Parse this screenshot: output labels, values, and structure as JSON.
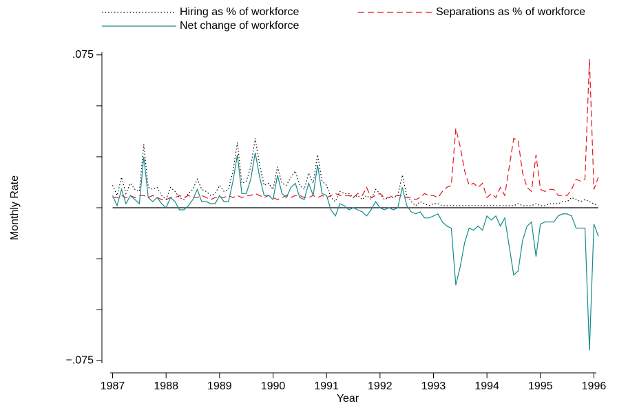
{
  "chart_data": {
    "type": "line",
    "x_label": "Year",
    "y_label": "Monthly Rate",
    "xlim": [
      1986.8,
      1996.2
    ],
    "xticks": [
      1987,
      1988,
      1989,
      1990,
      1991,
      1992,
      1993,
      1994,
      1995,
      1996
    ],
    "ylim": [
      -0.081,
      0.081
    ],
    "yticks": [
      {
        "value": -0.075,
        "label": "−.075"
      },
      {
        "value": 0.075,
        "label": ".075"
      }
    ],
    "yminorticks": [
      -0.05,
      -0.025,
      0,
      0.025,
      0.05
    ],
    "reference_line": 0,
    "x": [
      1987,
      1987.083,
      1987.167,
      1987.25,
      1987.333,
      1987.417,
      1987.5,
      1987.583,
      1987.667,
      1987.75,
      1987.833,
      1987.917,
      1988,
      1988.083,
      1988.167,
      1988.25,
      1988.333,
      1988.417,
      1988.5,
      1988.583,
      1988.667,
      1988.75,
      1988.833,
      1988.917,
      1989,
      1989.083,
      1989.167,
      1989.25,
      1989.333,
      1989.417,
      1989.5,
      1989.583,
      1989.667,
      1989.75,
      1989.833,
      1989.917,
      1990,
      1990.083,
      1990.167,
      1990.25,
      1990.333,
      1990.417,
      1990.5,
      1990.583,
      1990.667,
      1990.75,
      1990.833,
      1990.917,
      1991,
      1991.083,
      1991.167,
      1991.25,
      1991.333,
      1991.417,
      1991.5,
      1991.583,
      1991.667,
      1991.75,
      1991.833,
      1991.917,
      1992,
      1992.083,
      1992.167,
      1992.25,
      1992.333,
      1992.417,
      1992.5,
      1992.583,
      1992.667,
      1992.75,
      1992.833,
      1992.917,
      1993,
      1993.083,
      1993.167,
      1993.25,
      1993.333,
      1993.417,
      1993.5,
      1993.583,
      1993.667,
      1993.75,
      1993.833,
      1993.917,
      1994,
      1994.083,
      1994.167,
      1994.25,
      1994.333,
      1994.417,
      1994.5,
      1994.583,
      1994.667,
      1994.75,
      1994.833,
      1994.917,
      1995,
      1995.083,
      1995.167,
      1995.25,
      1995.333,
      1995.417,
      1995.5,
      1995.583,
      1995.667,
      1995.75,
      1995.833,
      1995.917,
      1996,
      1996.083
    ],
    "series": [
      {
        "name": "Hiring as % of workforce",
        "color": "#000000",
        "dash": "dotted",
        "values": [
          0.011,
          0.006,
          0.015,
          0.007,
          0.012,
          0.009,
          0.008,
          0.031,
          0.01,
          0.009,
          0.01,
          0.006,
          0.004,
          0.01,
          0.008,
          0.005,
          0.004,
          0.007,
          0.009,
          0.014,
          0.009,
          0.008,
          0.006,
          0.007,
          0.011,
          0.008,
          0.009,
          0.018,
          0.032,
          0.012,
          0.013,
          0.02,
          0.034,
          0.021,
          0.011,
          0.012,
          0.009,
          0.02,
          0.012,
          0.011,
          0.015,
          0.018,
          0.011,
          0.009,
          0.017,
          0.012,
          0.026,
          0.013,
          0.011,
          0.005,
          0.003,
          0.008,
          0.007,
          0.007,
          0.005,
          0.006,
          0.004,
          0.006,
          0.004,
          0.009,
          0.007,
          0.004,
          0.005,
          0.005,
          0.006,
          0.016,
          0.006,
          0.003,
          0.001,
          0.003,
          0.002,
          0.001,
          0.002,
          0.002,
          0.001,
          0.001,
          0.001,
          0.001,
          0.001,
          0.001,
          0.001,
          0.001,
          0.001,
          0.001,
          0.001,
          0.001,
          0.001,
          0.001,
          0.001,
          0.001,
          0.001,
          0.002,
          0.001,
          0.001,
          0.001,
          0.002,
          0.001,
          0.001,
          0.002,
          0.002,
          0.002,
          0.003,
          0.003,
          0.005,
          0.004,
          0.003,
          0.004,
          0.003,
          0.002,
          0.001
        ]
      },
      {
        "name": "Separations as % of workforce",
        "color": "#e8101a",
        "dash": "dashed",
        "values": [
          0.005,
          0.005,
          0.006,
          0.005,
          0.006,
          0.005,
          0.006,
          0.006,
          0.005,
          0.006,
          0.005,
          0.004,
          0.004,
          0.005,
          0.005,
          0.006,
          0.005,
          0.006,
          0.005,
          0.005,
          0.006,
          0.005,
          0.004,
          0.005,
          0.005,
          0.005,
          0.006,
          0.005,
          0.006,
          0.005,
          0.006,
          0.006,
          0.007,
          0.006,
          0.005,
          0.006,
          0.005,
          0.004,
          0.005,
          0.006,
          0.005,
          0.006,
          0.006,
          0.005,
          0.005,
          0.006,
          0.005,
          0.006,
          0.005,
          0.006,
          0.007,
          0.006,
          0.006,
          0.006,
          0.005,
          0.007,
          0.006,
          0.01,
          0.005,
          0.006,
          0.007,
          0.005,
          0.005,
          0.006,
          0.006,
          0.006,
          0.005,
          0.005,
          0.004,
          0.005,
          0.007,
          0.006,
          0.006,
          0.005,
          0.008,
          0.01,
          0.011,
          0.039,
          0.03,
          0.018,
          0.011,
          0.012,
          0.01,
          0.012,
          0.005,
          0.007,
          0.005,
          0.01,
          0.006,
          0.02,
          0.034,
          0.033,
          0.017,
          0.01,
          0.008,
          0.026,
          0.009,
          0.008,
          0.009,
          0.009,
          0.006,
          0.006,
          0.006,
          0.009,
          0.014,
          0.013,
          0.014,
          0.073,
          0.009,
          0.015
        ]
      },
      {
        "name": "Net change of workforce",
        "color": "#138a8a",
        "dash": "solid",
        "values": [
          0.006,
          0.001,
          0.009,
          0.002,
          0.006,
          0.004,
          0.002,
          0.025,
          0.005,
          0.003,
          0.005,
          0.002,
          0.0,
          0.005,
          0.003,
          -0.001,
          -0.001,
          0.001,
          0.004,
          0.009,
          0.003,
          0.003,
          0.002,
          0.002,
          0.006,
          0.003,
          0.003,
          0.013,
          0.026,
          0.007,
          0.007,
          0.014,
          0.027,
          0.015,
          0.006,
          0.006,
          0.004,
          0.016,
          0.007,
          0.005,
          0.01,
          0.012,
          0.005,
          0.004,
          0.012,
          0.006,
          0.021,
          0.007,
          0.006,
          -0.001,
          -0.004,
          0.002,
          0.001,
          -0.001,
          0.0,
          -0.001,
          -0.002,
          -0.004,
          -0.001,
          0.003,
          0.0,
          -0.001,
          0.0,
          -0.001,
          0.0,
          0.01,
          0.001,
          -0.002,
          -0.003,
          -0.002,
          -0.005,
          -0.005,
          -0.004,
          -0.003,
          -0.007,
          -0.009,
          -0.01,
          -0.038,
          -0.029,
          -0.017,
          -0.01,
          -0.011,
          -0.009,
          -0.011,
          -0.004,
          -0.006,
          -0.004,
          -0.009,
          -0.005,
          -0.019,
          -0.033,
          -0.031,
          -0.016,
          -0.009,
          -0.007,
          -0.024,
          -0.008,
          -0.007,
          -0.007,
          -0.007,
          -0.004,
          -0.003,
          -0.003,
          -0.004,
          -0.01,
          -0.01,
          -0.01,
          -0.07,
          -0.008,
          -0.014
        ]
      }
    ]
  }
}
